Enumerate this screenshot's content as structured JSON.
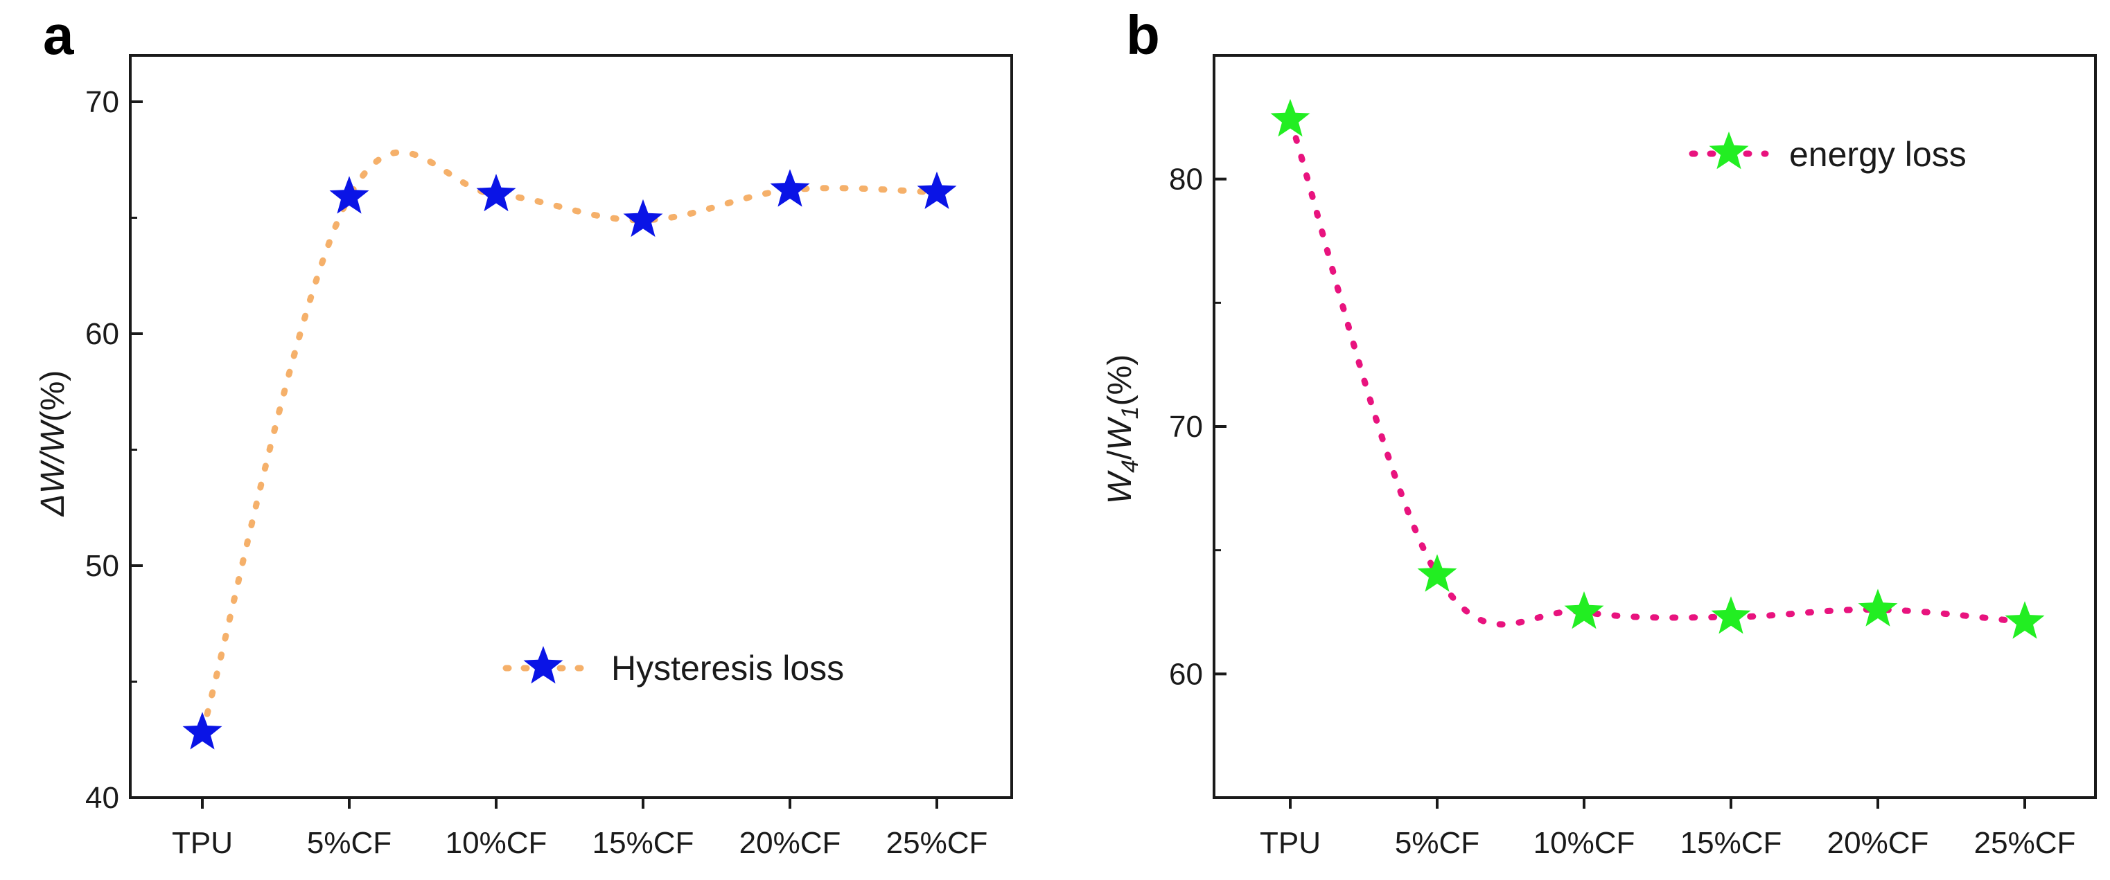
{
  "chart_data": [
    {
      "type": "line",
      "panel_label": "a",
      "categories": [
        "TPU",
        "5%CF",
        "10%CF",
        "15%CF",
        "20%CF",
        "25%CF"
      ],
      "series": [
        {
          "name": "Hysteresis loss",
          "values": [
            42.8,
            65.9,
            66.0,
            64.9,
            66.2,
            66.1
          ],
          "marker_color": "#0a14e6",
          "line_color": "#f5b06a"
        }
      ],
      "ylabel_parts": [
        "ΔW/W",
        "(%)"
      ],
      "xlabel": "",
      "ylim": [
        40,
        72
      ],
      "yticks": [
        40,
        50,
        60,
        70
      ],
      "legend_position": "lower-right",
      "grid": false
    },
    {
      "type": "line",
      "panel_label": "b",
      "categories": [
        "TPU",
        "5%CF",
        "10%CF",
        "15%CF",
        "20%CF",
        "25%CF"
      ],
      "series": [
        {
          "name": "energy loss",
          "values": [
            82.4,
            64.0,
            62.5,
            62.3,
            62.6,
            62.1
          ],
          "marker_color": "#22ee22",
          "line_color": "#e8137e"
        }
      ],
      "ylabel_parts": {
        "w": "W",
        "sub_a": "4",
        "slash": "/",
        "sub_b": "1",
        "unit": "(%)"
      },
      "xlabel": "",
      "ylim": [
        55,
        85
      ],
      "yticks": [
        60,
        70,
        80
      ],
      "legend_position": "top-right",
      "grid": false
    }
  ]
}
